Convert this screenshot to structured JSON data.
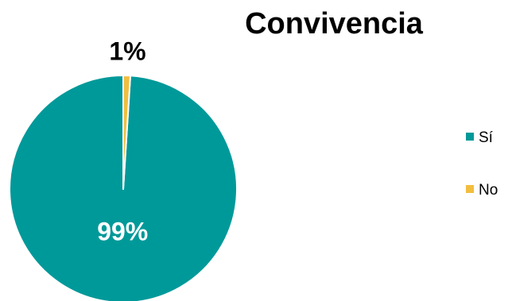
{
  "chart_data": {
    "type": "pie",
    "title": "Convivencia",
    "categories": [
      "Sí",
      "No"
    ],
    "values": [
      99,
      1
    ],
    "data_labels": [
      "99%",
      "1%"
    ],
    "colors": [
      "#009999",
      "#F2BE3F"
    ],
    "label_colors": [
      "#ffffff",
      "#000000"
    ],
    "legend_placement": "right"
  }
}
